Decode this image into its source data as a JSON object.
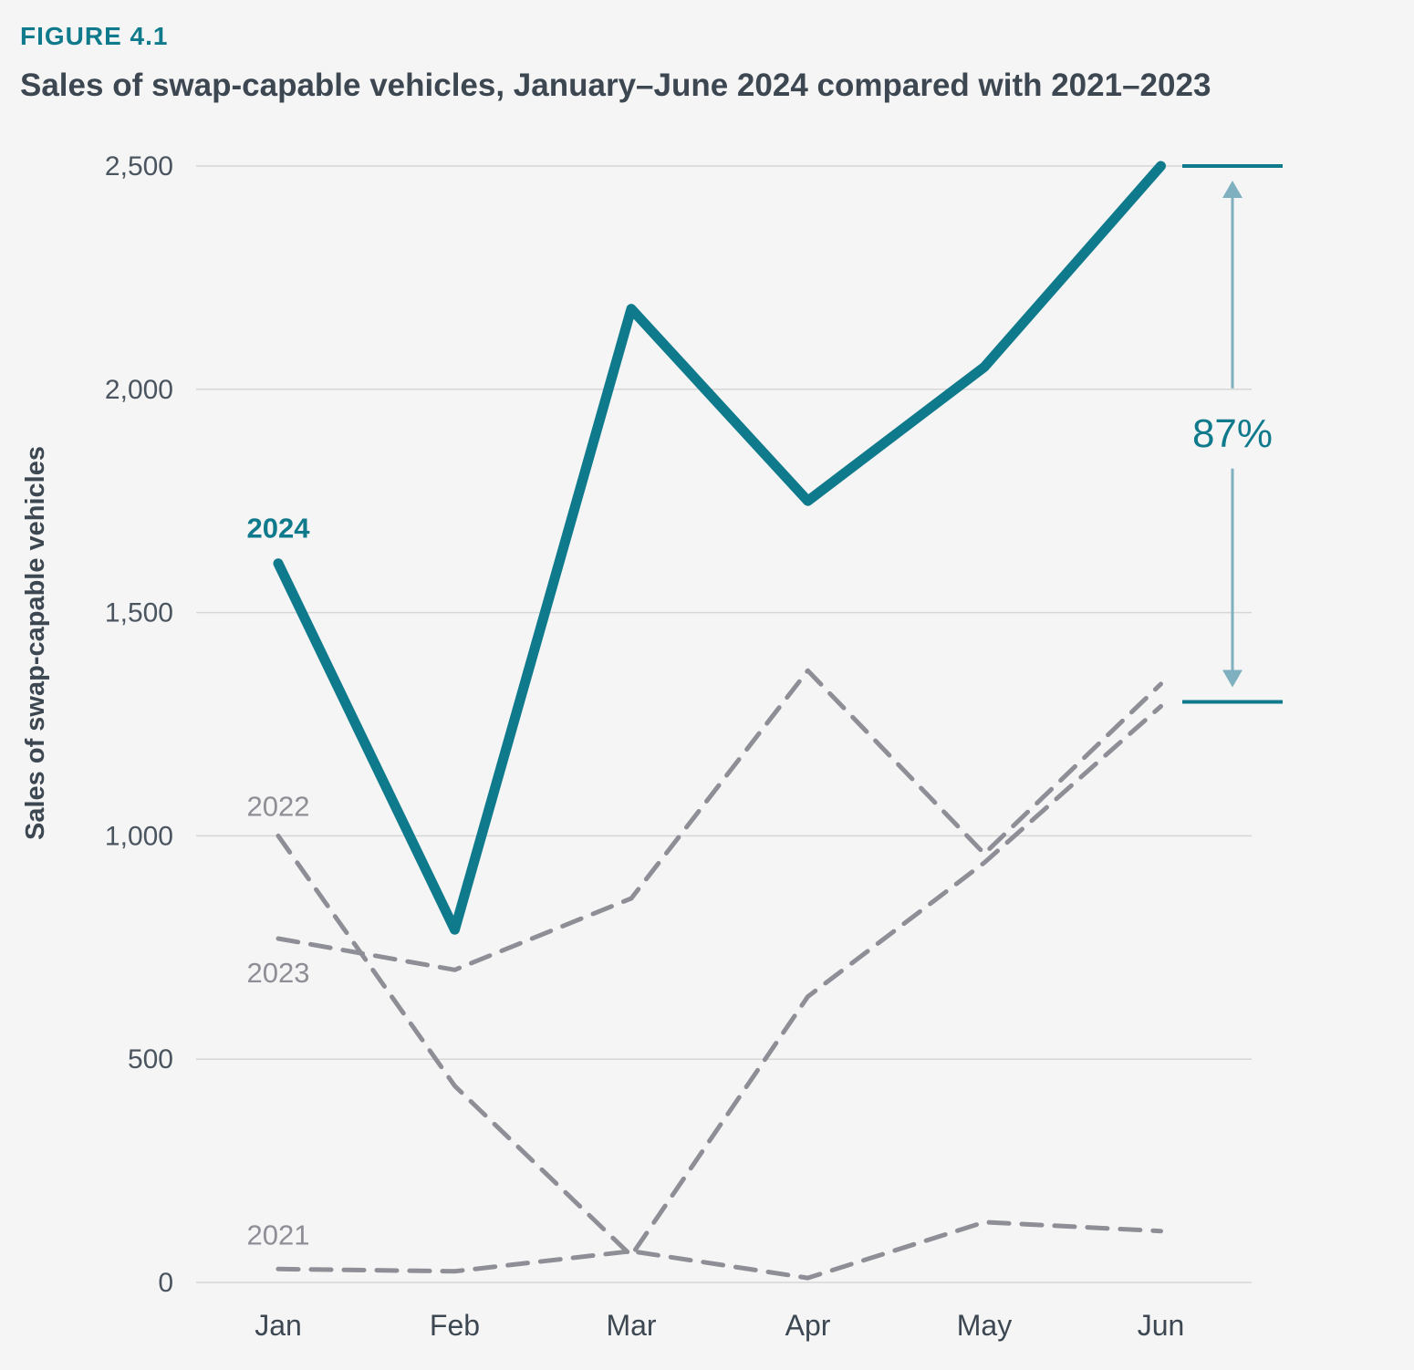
{
  "figure_label": "FIGURE 4.1",
  "title": "Sales of swap-capable vehicles, January–June 2024 compared with 2021–2023",
  "colors": {
    "highlight": "#0e7a8c",
    "other": "#8e8e96",
    "arrow": "#7fb0c0",
    "grid": "#d6d6d6"
  },
  "chart_data": {
    "type": "line",
    "title": "Sales of swap-capable vehicles, January–June 2024 compared with 2021–2023",
    "xlabel": "",
    "ylabel": "Sales of swap-capable vehicles",
    "categories": [
      "Jan",
      "Feb",
      "Mar",
      "Apr",
      "May",
      "Jun"
    ],
    "ylim": [
      0,
      2500
    ],
    "yticks": [
      0,
      500,
      1000,
      1500,
      2000,
      2500
    ],
    "ytick_labels": [
      "0",
      "500",
      "1,000",
      "1,500",
      "2,000",
      "2,500"
    ],
    "grid": true,
    "series": [
      {
        "name": "2024",
        "values": [
          1610,
          790,
          2180,
          1750,
          2050,
          2500
        ],
        "style": "solid",
        "color": "#0e7a8c"
      },
      {
        "name": "2023",
        "values": [
          770,
          700,
          860,
          1370,
          960,
          1340
        ],
        "style": "dashed",
        "color": "#8e8e96"
      },
      {
        "name": "2022",
        "values": [
          1000,
          440,
          60,
          640,
          940,
          1290
        ],
        "style": "dashed",
        "color": "#8e8e96"
      },
      {
        "name": "2021",
        "values": [
          30,
          25,
          70,
          10,
          135,
          115
        ],
        "style": "dashed",
        "color": "#8e8e96"
      }
    ],
    "annotation": {
      "text": "87%",
      "from_value": 1300,
      "to_value": 2500
    }
  }
}
